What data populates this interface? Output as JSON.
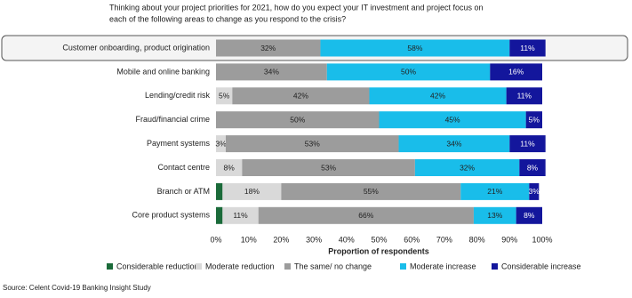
{
  "chart_data": {
    "type": "stacked-bar-horizontal",
    "title": [
      "Thinking about your project priorities for 2021, how do you expect your IT investment and project focus on",
      "each of the following areas to change as you respond to the crisis?"
    ],
    "categories": [
      "Customer onboarding, product origination",
      "Mobile and online banking",
      "Lending/credit risk",
      "Fraud/financial crime",
      "Payment systems",
      "Contact centre",
      "Branch or ATM",
      "Core product systems"
    ],
    "series": [
      {
        "name": "Considerable reduction",
        "color": "#1b6b3a",
        "values": [
          null,
          null,
          null,
          null,
          null,
          null,
          2,
          2
        ],
        "value_labels": [
          null,
          null,
          null,
          null,
          null,
          null,
          null,
          null
        ]
      },
      {
        "name": "Moderate reduction",
        "color": "#d9d9d9",
        "values": [
          null,
          null,
          5,
          null,
          3,
          8,
          18,
          11
        ],
        "value_labels": [
          null,
          null,
          "5%",
          null,
          "3%",
          "8%",
          "18%",
          "11%"
        ]
      },
      {
        "name": "The same/ no change",
        "color": "#9c9c9c",
        "values": [
          32,
          34,
          42,
          50,
          53,
          53,
          55,
          66
        ],
        "value_labels": [
          "32%",
          "34%",
          "42%",
          "50%",
          "53%",
          "53%",
          "55%",
          "66%"
        ]
      },
      {
        "name": "Moderate increase",
        "color": "#19bdea",
        "values": [
          58,
          50,
          42,
          45,
          34,
          32,
          21,
          13
        ],
        "value_labels": [
          "58%",
          "50%",
          "42%",
          "45%",
          "34%",
          "32%",
          "21%",
          "13%"
        ]
      },
      {
        "name": "Considerable increase",
        "color": "#13169c",
        "values": [
          11,
          16,
          11,
          5,
          11,
          8,
          3,
          8
        ],
        "value_labels": [
          "11%",
          "16%",
          "11%",
          "5%",
          "11%",
          "8%",
          "3%",
          "8%"
        ]
      }
    ],
    "xlim": [
      0,
      100
    ],
    "xticks": [
      {
        "value": 0,
        "label": "0%"
      },
      {
        "value": 10,
        "label": "10%"
      },
      {
        "value": 20,
        "label": "20%"
      },
      {
        "value": 30,
        "label": "30%"
      },
      {
        "value": 40,
        "label": "40%"
      },
      {
        "value": 50,
        "label": "50%"
      },
      {
        "value": 60,
        "label": "60%"
      },
      {
        "value": 70,
        "label": "70%"
      },
      {
        "value": 80,
        "label": "80%"
      },
      {
        "value": 90,
        "label": "90%"
      },
      {
        "value": 100,
        "label": "100%"
      }
    ],
    "xlabel": "Proportion of respondents",
    "grid": false,
    "legend": "bottom",
    "source": "Source: Celent Covid-19 Banking Insight Study"
  }
}
